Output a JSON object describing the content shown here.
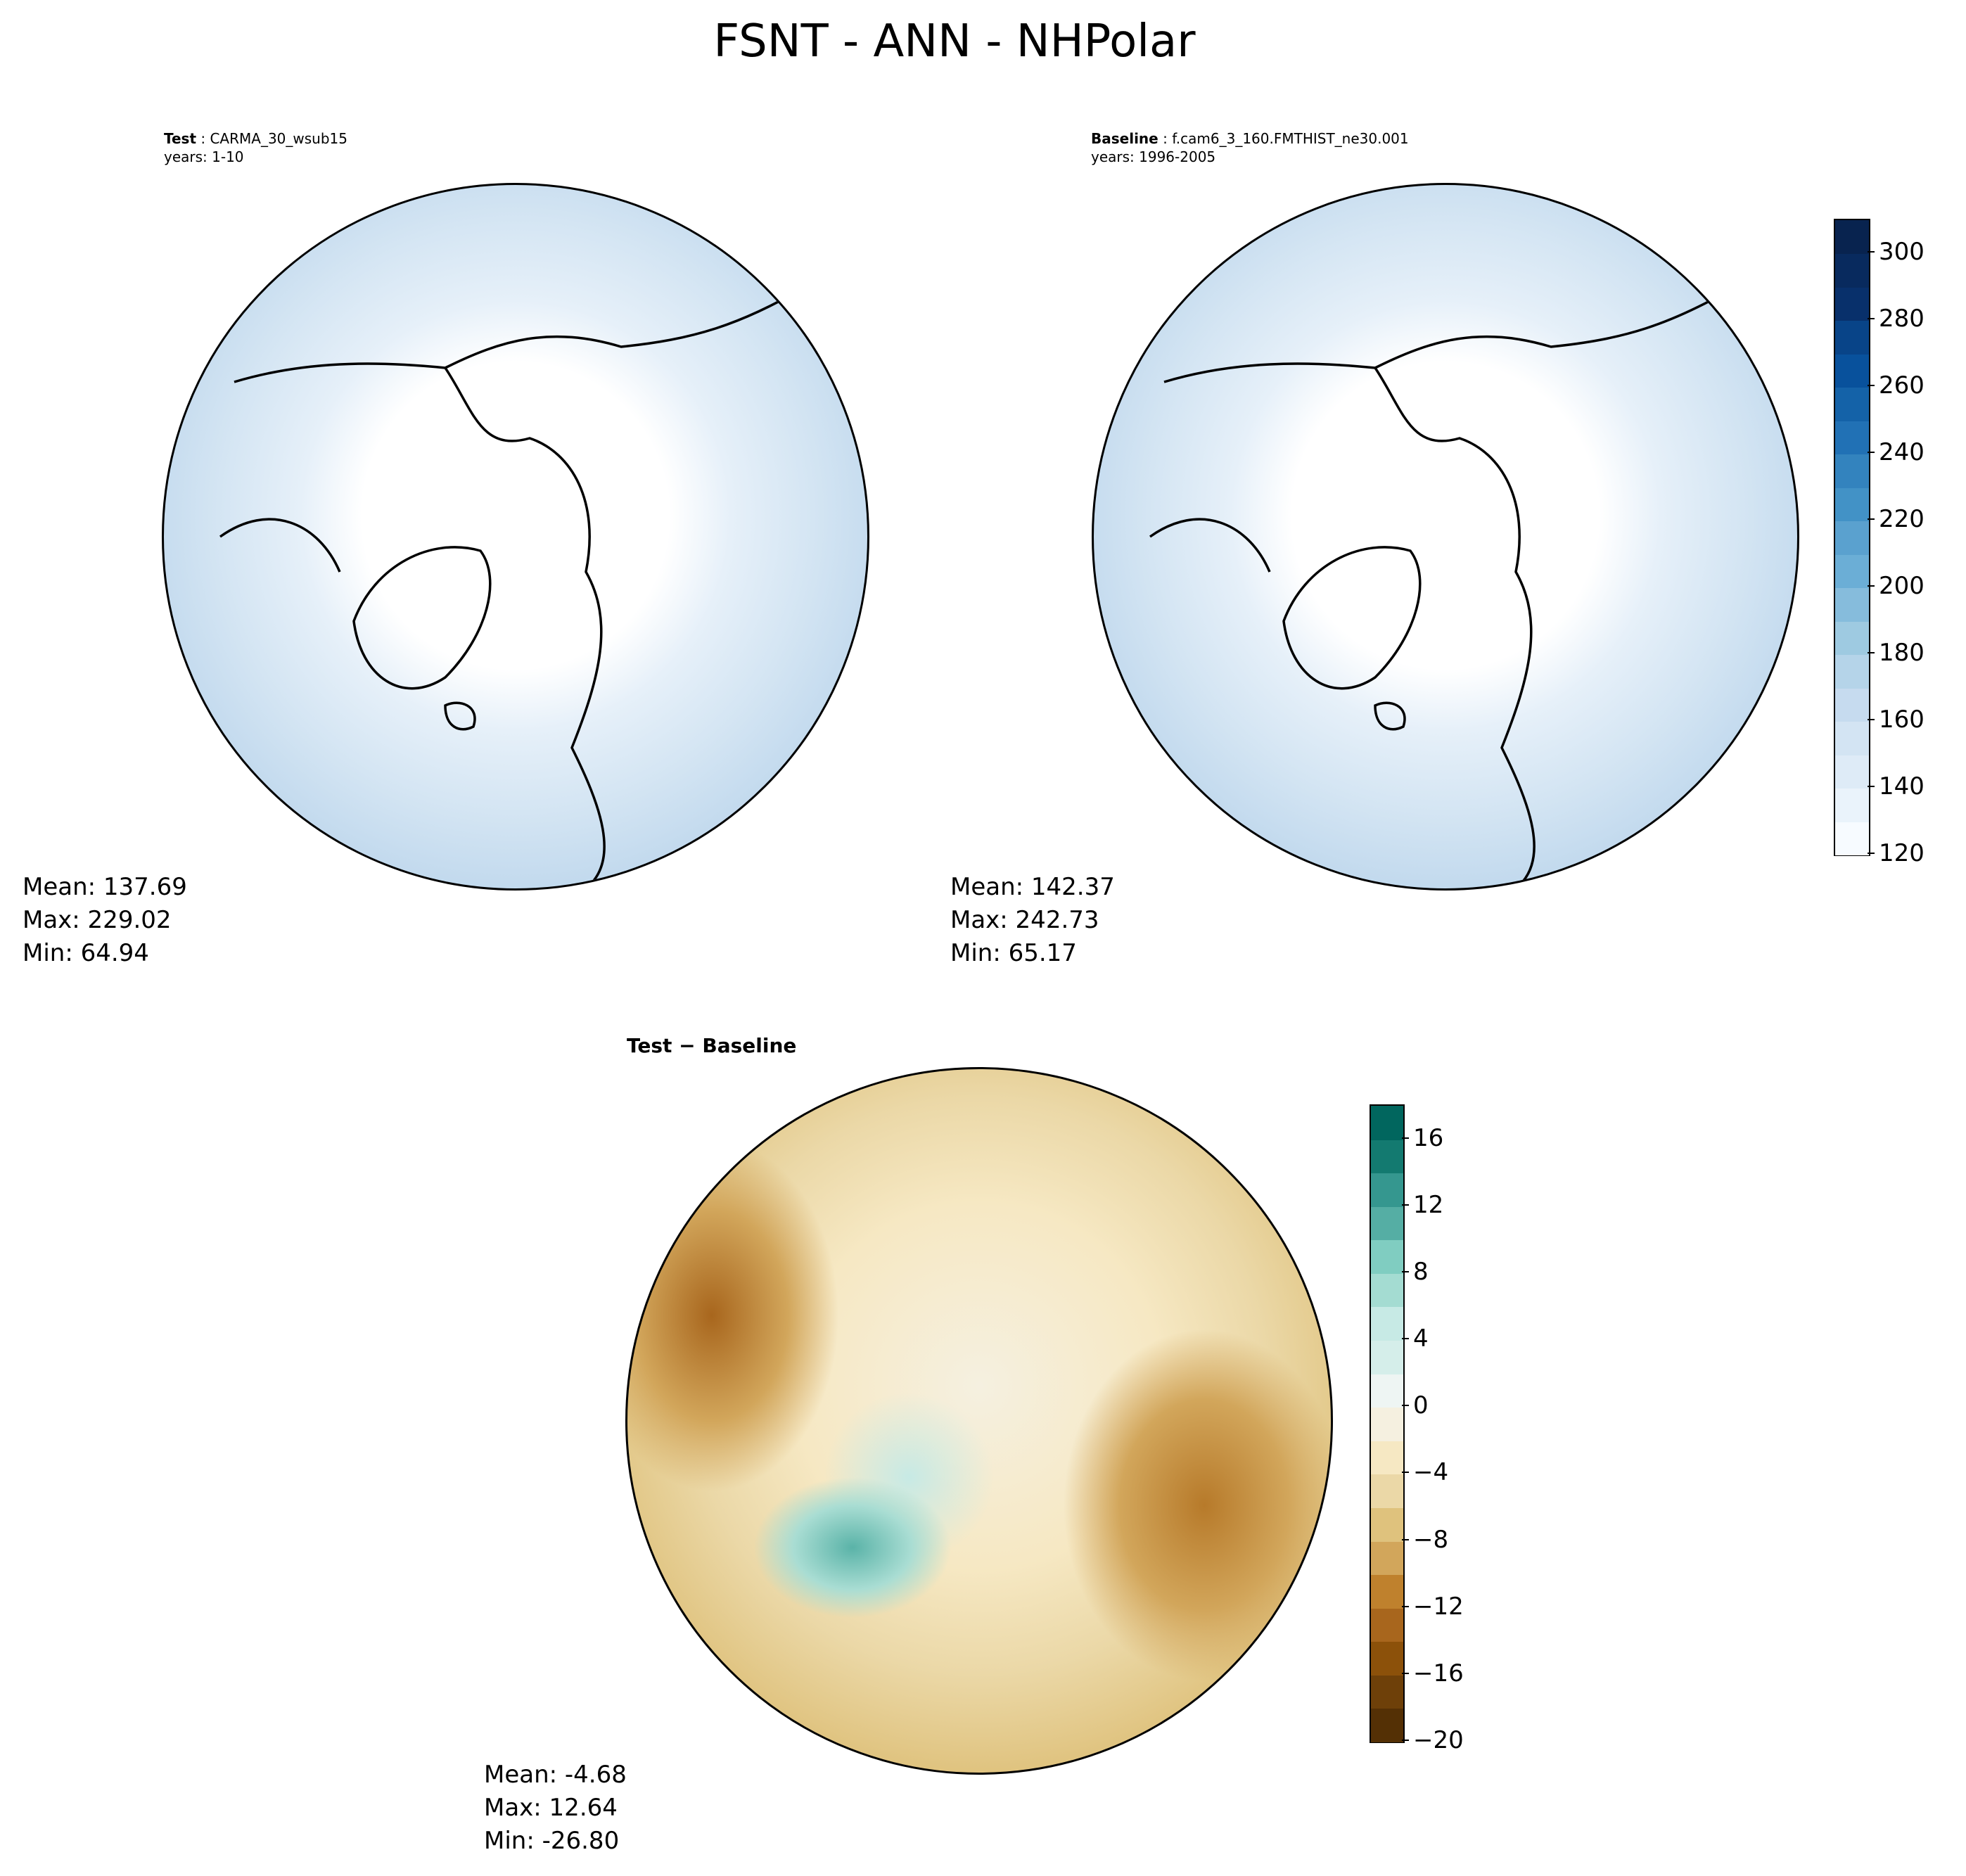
{
  "title": "FSNT - ANN - NHPolar",
  "panels": [
    {
      "label": "Test",
      "case": "CARMA_30_wsub15",
      "years": "years: 1-10",
      "stats": {
        "mean": "Mean: 137.69",
        "max": "Max: 229.02",
        "min": "Min: 64.94"
      }
    },
    {
      "label": "Baseline",
      "case": "f.cam6_3_160.FMTHIST_ne30.001",
      "years": "years: 1996-2005",
      "stats": {
        "mean": "Mean: 142.37",
        "max": "Max: 242.73",
        "min": "Min: 65.17"
      }
    },
    {
      "label": "Test − Baseline",
      "stats": {
        "mean": "Mean: -4.68",
        "max": "Max: 12.64",
        "min": "Min: -26.80"
      }
    }
  ],
  "chart_data": [
    {
      "type": "heatmap",
      "projection": "north polar stereographic",
      "colormap": "Blues",
      "colorbar": {
        "range": [
          120,
          310
        ],
        "ticks": [
          "120",
          "140",
          "160",
          "180",
          "200",
          "220",
          "240",
          "260",
          "280",
          "300"
        ]
      }
    },
    {
      "type": "heatmap",
      "projection": "north polar stereographic",
      "colormap": "BrBG",
      "colorbar": {
        "range": [
          -20,
          18
        ],
        "ticks": [
          "−20",
          "−16",
          "−12",
          "−8",
          "−4",
          "0",
          "4",
          "8",
          "12",
          "16"
        ]
      }
    }
  ],
  "colors": {
    "blues_low": "#f7fbff",
    "blues_high": "#08306b",
    "brbg_low": "#543005",
    "brbg_mid": "#f5f5f5",
    "brbg_high": "#003c30"
  }
}
